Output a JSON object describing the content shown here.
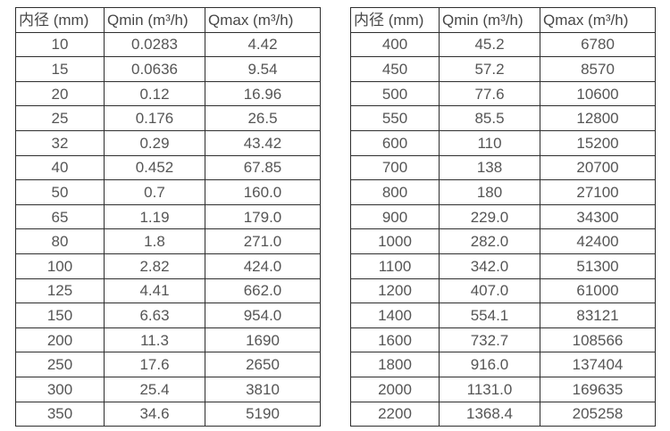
{
  "style": {
    "background": "#ffffff",
    "border_color": "#2e2e2e",
    "header_text_color": "#474747",
    "cell_text_color": "#555555"
  },
  "chart_data": [
    {
      "type": "table",
      "position": "left",
      "columns": [
        "内径 (mm)",
        "Qmin (m³/h)",
        "Qmax (m³/h)"
      ],
      "rows": [
        [
          "10",
          "0.0283",
          "4.42"
        ],
        [
          "15",
          "0.0636",
          "9.54"
        ],
        [
          "20",
          "0.12",
          "16.96"
        ],
        [
          "25",
          "0.176",
          "26.5"
        ],
        [
          "32",
          "0.29",
          "43.42"
        ],
        [
          "40",
          "0.452",
          "67.85"
        ],
        [
          "50",
          "0.7",
          "160.0"
        ],
        [
          "65",
          "1.19",
          "179.0"
        ],
        [
          "80",
          "1.8",
          "271.0"
        ],
        [
          "100",
          "2.82",
          "424.0"
        ],
        [
          "125",
          "4.41",
          "662.0"
        ],
        [
          "150",
          "6.63",
          "954.0"
        ],
        [
          "200",
          "11.3",
          "1690"
        ],
        [
          "250",
          "17.6",
          "2650"
        ],
        [
          "300",
          "25.4",
          "3810"
        ],
        [
          "350",
          "34.6",
          "5190"
        ]
      ]
    },
    {
      "type": "table",
      "position": "right",
      "columns": [
        "内径 (mm)",
        "Qmin (m³/h)",
        "Qmax (m³/h)"
      ],
      "rows": [
        [
          "400",
          "45.2",
          "6780"
        ],
        [
          "450",
          "57.2",
          "8570"
        ],
        [
          "500",
          "77.6",
          "10600"
        ],
        [
          "550",
          "85.5",
          "12800"
        ],
        [
          "600",
          "110",
          "15200"
        ],
        [
          "700",
          "138",
          "20700"
        ],
        [
          "800",
          "180",
          "27100"
        ],
        [
          "900",
          "229.0",
          "34300"
        ],
        [
          "1000",
          "282.0",
          "42400"
        ],
        [
          "1100",
          "342.0",
          "51300"
        ],
        [
          "1200",
          "407.0",
          "61000"
        ],
        [
          "1400",
          "554.1",
          "83121"
        ],
        [
          "1600",
          "732.7",
          "108566"
        ],
        [
          "1800",
          "916.0",
          "137404"
        ],
        [
          "2000",
          "1131.0",
          "169635"
        ],
        [
          "2200",
          "1368.4",
          "205258"
        ]
      ]
    }
  ]
}
